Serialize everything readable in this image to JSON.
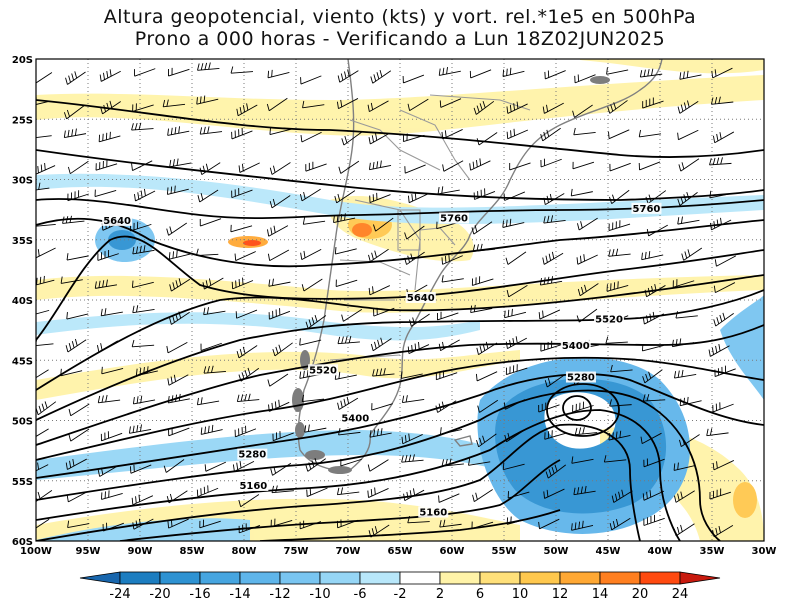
{
  "title": {
    "line1": "Altura geopotencial, viento (kts) y vort. rel.*1e5 en 500hPa",
    "line2": "Prono a 000 horas - Verificando a Lun 18Z02JUN2025"
  },
  "axes": {
    "lat_labels": [
      "20S",
      "25S",
      "30S",
      "35S",
      "40S",
      "45S",
      "50S",
      "55S",
      "60S"
    ],
    "lon_labels": [
      "100W",
      "95W",
      "90W",
      "85W",
      "80W",
      "75W",
      "70W",
      "65W",
      "60W",
      "55W",
      "50W",
      "45W",
      "40W",
      "35W",
      "30W"
    ]
  },
  "contour_labels": [
    {
      "text": "5640",
      "lon": -92.2,
      "lat": -33.6
    },
    {
      "text": "5760",
      "lon": -59.8,
      "lat": -33.4
    },
    {
      "text": "5760",
      "lon": -41.3,
      "lat": -32.6
    },
    {
      "text": "5640",
      "lon": -63.0,
      "lat": -40.0
    },
    {
      "text": "5520",
      "lon": -44.9,
      "lat": -41.8
    },
    {
      "text": "5400",
      "lon": -48.1,
      "lat": -44.0
    },
    {
      "text": "5280",
      "lon": -47.6,
      "lat": -46.6
    },
    {
      "text": "5520",
      "lon": -72.4,
      "lat": -46.0
    },
    {
      "text": "5400",
      "lon": -69.3,
      "lat": -50.0
    },
    {
      "text": "5280",
      "lon": -79.2,
      "lat": -53.0
    },
    {
      "text": "5160",
      "lon": -79.1,
      "lat": -55.6
    },
    {
      "text": "5160",
      "lon": -61.8,
      "lat": -57.8
    }
  ],
  "colorbar": {
    "labels": [
      "-24",
      "-20",
      "-16",
      "-14",
      "-12",
      "-10",
      "-6",
      "-2",
      "2",
      "6",
      "10",
      "12",
      "14",
      "20",
      "24"
    ],
    "colors": [
      "#1c7dc0",
      "#2e92d2",
      "#46a5e0",
      "#5fb5ea",
      "#79c5f1",
      "#96d6f6",
      "#b8e7fa",
      "#ffffff",
      "#fff3a8",
      "#ffe07a",
      "#ffc84e",
      "#ffa834",
      "#ff7f20",
      "#ff4a10"
    ],
    "low_end_color": "#1866ad",
    "high_end_color": "#c81a0e"
  }
}
